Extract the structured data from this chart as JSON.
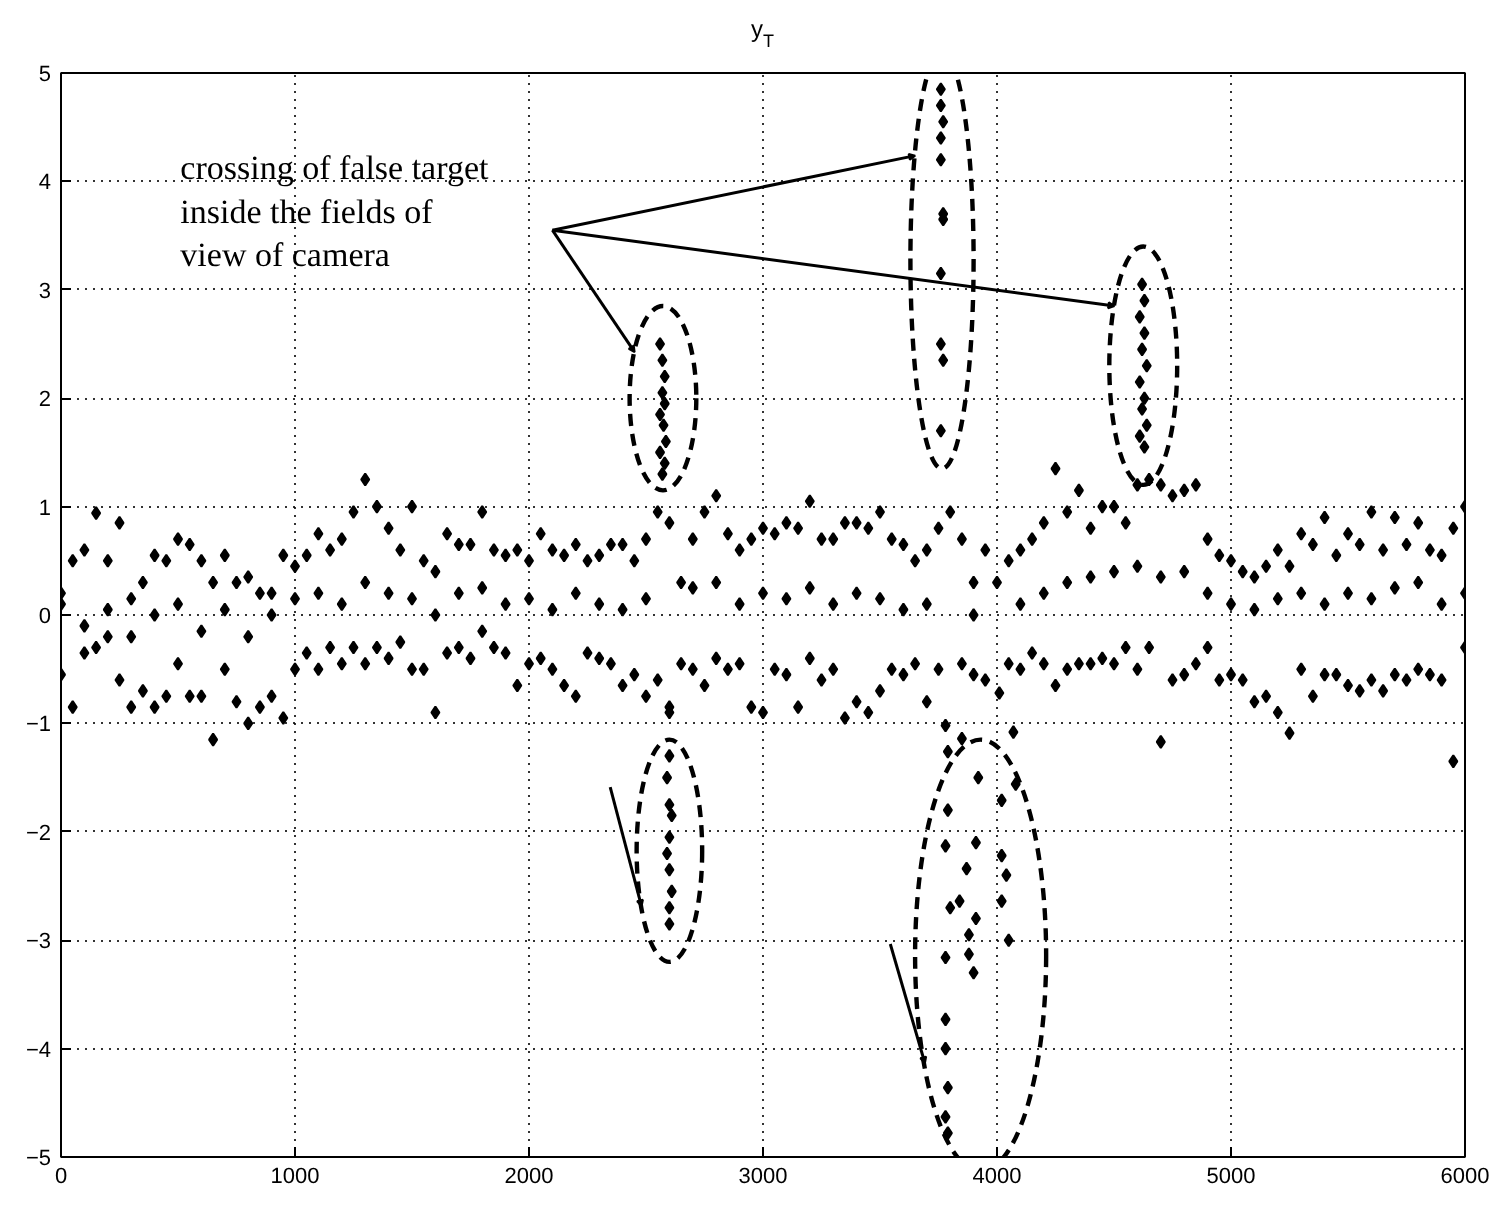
{
  "chart_data": {
    "type": "scatter",
    "title": "y$_{T}$",
    "annotations": [
      "crossing of false target\ninside the fields of\nview of camera"
    ],
    "xlim": [
      0,
      6000
    ],
    "ylim": [
      -5,
      5
    ],
    "xticks": [
      0,
      1000,
      2000,
      3000,
      4000,
      5000,
      6000
    ],
    "yticks": [
      -5,
      -4,
      -3,
      -2,
      -1,
      0,
      1,
      2,
      3,
      4,
      5
    ],
    "grid": true,
    "marker": "diamond",
    "series": [
      {
        "color": "#000000",
        "x": [
          0,
          50,
          100,
          150,
          200,
          250,
          300,
          350,
          400,
          450,
          500,
          550,
          600,
          650,
          700,
          750,
          800,
          850,
          900,
          950,
          1000,
          1050,
          1100,
          1150,
          1200,
          1250,
          1300,
          1350,
          1400,
          1450,
          1500,
          1550,
          1600,
          1650,
          1700,
          1750,
          1800,
          1850,
          1900,
          1950,
          2000,
          2050,
          2100,
          2150,
          2200,
          2250,
          2300,
          2350,
          2400,
          2450,
          2500,
          2550,
          2600,
          2650,
          2700,
          2750,
          2800,
          2850,
          2900,
          2950,
          3000,
          3050,
          3100,
          3150,
          3200,
          3250,
          3300,
          3350,
          3400,
          3450,
          3500,
          3550,
          3600,
          3650,
          3700,
          3750,
          3800,
          3850,
          3900,
          3950,
          4000,
          4050,
          4100,
          4150,
          4200,
          4250,
          4300,
          4350,
          4400,
          4450,
          4500,
          4550,
          4600,
          4650,
          4700,
          4750,
          4800,
          4850,
          4900,
          4950,
          5000,
          5050,
          5100,
          5150,
          5200,
          5250,
          5300,
          5350,
          5400,
          5450,
          5500,
          5550,
          5600,
          5650,
          5700,
          5750,
          5800,
          5850,
          5900,
          5950,
          6000,
          0,
          50,
          100,
          150,
          200,
          250,
          300,
          350,
          400,
          450,
          500,
          550,
          600,
          650,
          700,
          750,
          800,
          850,
          900,
          950,
          1000,
          1050,
          1100,
          1150,
          1200,
          1250,
          1300,
          1350,
          1400,
          1450,
          1500,
          1550,
          1600,
          1650,
          1700,
          1750,
          1800,
          1850,
          1900,
          1950,
          2000,
          2050,
          2100,
          2150,
          2200,
          2250,
          2300,
          2350,
          2400,
          2450,
          2500,
          2550,
          2600,
          2650,
          2700,
          2750,
          2800,
          2850,
          2900,
          2950,
          3000,
          3050,
          3100,
          3150,
          3200,
          3250,
          3300,
          3350,
          3400,
          3450,
          3500,
          3550,
          3600,
          3650,
          3700,
          3750,
          3850,
          3900,
          3950,
          4050,
          4100,
          4150,
          4200,
          4250,
          4300,
          4350,
          4400,
          4450,
          4500,
          4550,
          4600,
          4650,
          4700,
          4750,
          4800,
          4850,
          4900,
          4950,
          5000,
          5050,
          5100,
          5150,
          5200,
          5250,
          5300,
          5350,
          5400,
          5450,
          5500,
          5550,
          5600,
          5650,
          5700,
          5750,
          5800,
          5850,
          5900,
          5950,
          6000,
          0,
          100,
          200,
          300,
          400,
          500,
          600,
          700,
          800,
          900,
          1000,
          1100,
          1200,
          1300,
          1400,
          1500,
          1600,
          1700,
          1800,
          1900,
          2000,
          2100,
          2200,
          2300,
          2400,
          2500,
          2700,
          2800,
          2900,
          3000,
          3100,
          3200,
          3300,
          3400,
          3500,
          3600,
          3700,
          3900,
          4100,
          4200,
          4300,
          4400,
          4500,
          4600,
          4700,
          4800,
          4900,
          5000,
          5100,
          5200,
          5300,
          5400,
          5500,
          5600,
          5700,
          5800,
          5900,
          6000,
          2560,
          2570,
          2580,
          2570,
          2580,
          2560,
          2575,
          2585,
          2560,
          2580,
          2570,
          2600,
          2600,
          2590,
          2600,
          2610,
          2600,
          2590,
          2600,
          2610,
          2600,
          2600,
          3760,
          3760,
          3770,
          3760,
          3760,
          3770,
          3770,
          3760,
          3760,
          3770,
          3760,
          4620,
          4630,
          4610,
          4630,
          4620,
          4640,
          4610,
          4630,
          4620,
          4640,
          4610,
          4630,
          3780,
          3850,
          3790,
          3920,
          3790,
          3780,
          3910,
          3870,
          3800,
          3880,
          3900,
          3880,
          3780,
          3780,
          3780,
          3790,
          3780,
          3790,
          4010,
          4070,
          4020,
          4080,
          4020,
          4040,
          4020,
          4050,
          3910,
          3840
        ],
        "values": [
          0.2,
          0.5,
          0.6,
          0.94,
          0.5,
          0.85,
          0.15,
          0.3,
          0.55,
          0.5,
          0.7,
          0.65,
          0.5,
          0.3,
          0.55,
          0.3,
          0.35,
          0.2,
          0.2,
          0.55,
          0.45,
          0.55,
          0.75,
          0.6,
          0.7,
          0.95,
          1.25,
          1.0,
          0.8,
          0.6,
          1.0,
          0.5,
          0.4,
          0.75,
          0.65,
          0.65,
          0.95,
          0.6,
          0.55,
          0.6,
          0.5,
          0.75,
          0.6,
          0.55,
          0.65,
          0.5,
          0.55,
          0.65,
          0.65,
          0.5,
          0.7,
          0.95,
          0.85,
          0.3,
          0.7,
          0.95,
          1.1,
          0.75,
          0.6,
          0.7,
          0.8,
          0.75,
          0.85,
          0.8,
          1.05,
          0.7,
          0.7,
          0.85,
          0.85,
          0.8,
          0.95,
          0.7,
          0.65,
          0.5,
          0.6,
          0.8,
          0.95,
          0.7,
          0.3,
          0.6,
          0.3,
          0.5,
          0.6,
          0.7,
          0.85,
          1.35,
          0.95,
          1.15,
          0.8,
          1.0,
          1.0,
          0.85,
          1.2,
          1.25,
          1.2,
          1.1,
          1.15,
          1.2,
          0.7,
          0.55,
          0.5,
          0.4,
          0.35,
          0.45,
          0.6,
          0.45,
          0.75,
          0.65,
          0.9,
          0.55,
          0.75,
          0.65,
          0.95,
          0.6,
          0.9,
          0.65,
          0.85,
          0.6,
          0.55,
          0.8,
          1.0,
          -0.55,
          -0.85,
          -0.35,
          -0.3,
          -0.2,
          -0.6,
          -0.85,
          -0.7,
          -0.85,
          -0.75,
          -0.45,
          -0.75,
          -0.75,
          -1.15,
          -0.5,
          -0.8,
          -1.0,
          -0.85,
          -0.75,
          -0.95,
          -0.5,
          -0.35,
          -0.5,
          -0.3,
          -0.45,
          -0.3,
          -0.45,
          -0.3,
          -0.4,
          -0.25,
          -0.5,
          -0.5,
          -0.9,
          -0.35,
          -0.3,
          -0.4,
          -0.15,
          -0.3,
          -0.35,
          -0.65,
          -0.45,
          -0.4,
          -0.5,
          -0.65,
          -0.75,
          -0.35,
          -0.4,
          -0.45,
          -0.65,
          -0.55,
          -0.75,
          -0.6,
          -0.85,
          -0.45,
          -0.5,
          -0.65,
          -0.4,
          -0.5,
          -0.45,
          -0.85,
          -0.9,
          -0.5,
          -0.55,
          -0.85,
          -0.4,
          -0.6,
          -0.5,
          -0.95,
          -0.8,
          -0.9,
          -0.7,
          -0.5,
          -0.55,
          -0.45,
          -0.8,
          -0.5,
          -0.45,
          -0.55,
          -0.6,
          -0.45,
          -0.5,
          -0.35,
          -0.45,
          -0.65,
          -0.5,
          -0.45,
          -0.45,
          -0.4,
          -0.45,
          -0.3,
          -0.5,
          -0.3,
          -1.17,
          -0.6,
          -0.55,
          -0.45,
          -0.3,
          -0.6,
          -0.55,
          -0.6,
          -0.8,
          -0.75,
          -0.9,
          -1.09,
          -0.5,
          -0.75,
          -0.55,
          -0.55,
          -0.65,
          -0.7,
          -0.6,
          -0.7,
          -0.55,
          -0.6,
          -0.5,
          -0.55,
          -0.6,
          -1.35,
          -0.3,
          0.1,
          -0.1,
          0.05,
          -0.2,
          0.0,
          0.1,
          -0.15,
          0.05,
          -0.2,
          0.0,
          0.15,
          0.2,
          0.1,
          0.3,
          0.2,
          0.15,
          0.0,
          0.2,
          0.25,
          0.1,
          0.15,
          0.05,
          0.2,
          0.1,
          0.05,
          0.15,
          0.25,
          0.3,
          0.1,
          0.2,
          0.15,
          0.25,
          0.1,
          0.2,
          0.15,
          0.05,
          0.1,
          0.0,
          0.1,
          0.2,
          0.3,
          0.35,
          0.4,
          0.45,
          0.35,
          0.4,
          0.2,
          0.1,
          0.05,
          0.15,
          0.2,
          0.1,
          0.2,
          0.15,
          0.25,
          0.3,
          0.1,
          0.2,
          2.5,
          2.35,
          2.2,
          2.05,
          1.95,
          1.85,
          1.75,
          1.6,
          1.5,
          1.4,
          1.3,
          -0.9,
          -1.3,
          -1.5,
          -1.75,
          -1.85,
          -2.05,
          -2.2,
          -2.35,
          -2.55,
          -2.7,
          -2.85,
          4.85,
          4.7,
          4.55,
          4.4,
          4.2,
          3.7,
          3.65,
          3.15,
          2.5,
          2.35,
          1.7,
          3.05,
          2.9,
          2.75,
          2.6,
          2.45,
          2.3,
          2.15,
          2.0,
          1.9,
          1.75,
          1.65,
          1.55,
          -1.02,
          -1.14,
          -1.26,
          -1.5,
          -1.8,
          -2.13,
          -2.1,
          -2.34,
          -2.7,
          -2.95,
          -3.3,
          -3.13,
          -3.16,
          -3.73,
          -4.0,
          -4.36,
          -4.63,
          -4.78,
          -0.72,
          -1.08,
          -1.71,
          -1.56,
          -2.22,
          -2.4,
          -2.64,
          -3.0,
          -2.8,
          -2.64
        ]
      }
    ]
  }
}
